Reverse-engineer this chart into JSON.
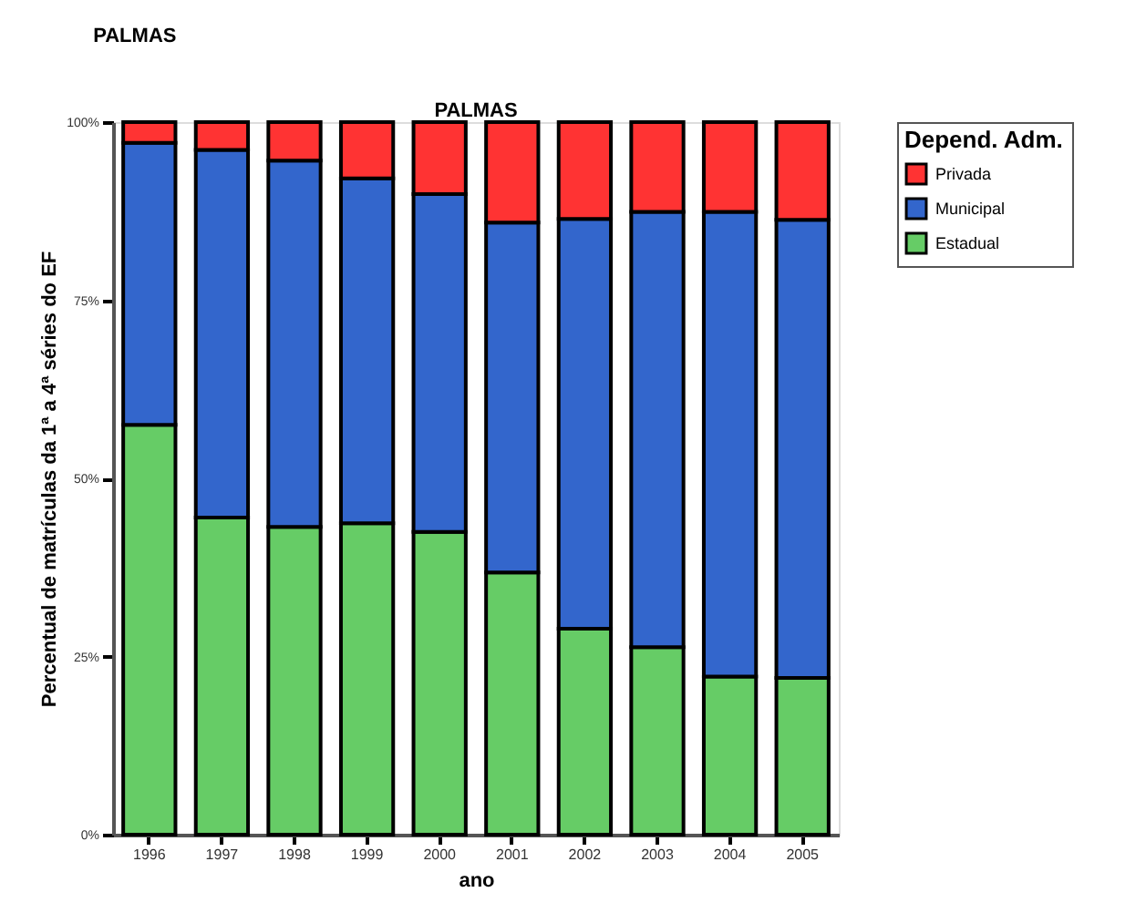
{
  "chart_data": {
    "type": "bar",
    "title": "PALMAS",
    "subtitle": "PALMAS",
    "xlabel": "ano",
    "ylabel": "Percentual de matrículas da 1ª a 4ª séries do EF",
    "legend_title": "Depend. Adm.",
    "categories": [
      "1996",
      "1997",
      "1998",
      "1999",
      "2000",
      "2001",
      "2002",
      "2003",
      "2004",
      "2005"
    ],
    "stacked": true,
    "series": [
      {
        "name": "Estadual",
        "color": "#66cc66",
        "values": [
          57.5,
          44.5,
          43.2,
          43.7,
          42.5,
          36.8,
          28.9,
          26.3,
          22.2,
          22.0
        ]
      },
      {
        "name": "Municipal",
        "color": "#3366cc",
        "values": [
          39.6,
          51.6,
          51.4,
          48.4,
          47.4,
          49.1,
          57.5,
          61.1,
          65.2,
          64.3
        ]
      },
      {
        "name": "Privada",
        "color": "#ff3333",
        "values": [
          2.9,
          3.9,
          5.4,
          7.9,
          10.1,
          14.1,
          13.6,
          12.6,
          12.6,
          13.7
        ]
      }
    ],
    "ylim": [
      0,
      100
    ],
    "yticks": [
      {
        "value": 0,
        "label": "0%"
      },
      {
        "value": 25,
        "label": "25%"
      },
      {
        "value": 50,
        "label": "50%"
      },
      {
        "value": 75,
        "label": "75%"
      },
      {
        "value": 100,
        "label": "100%"
      }
    ],
    "grid": false,
    "legend": "top right"
  }
}
